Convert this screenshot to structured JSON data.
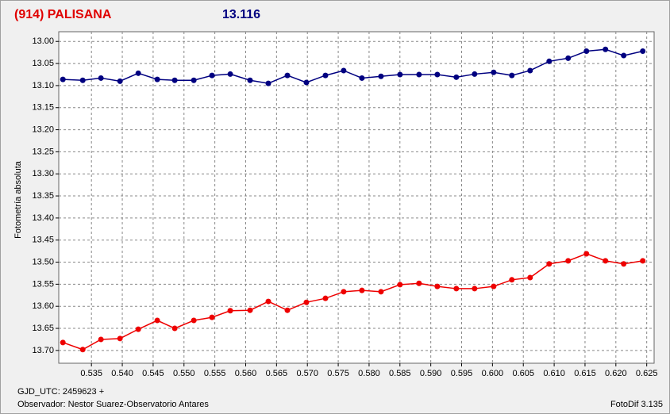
{
  "chart_data": {
    "type": "line",
    "title": "(914) PALISANA",
    "subtitle": "13.116",
    "ylabel": "Fotometría absoluta",
    "xlabel": "GJD_UTC: 2459623 +",
    "observer": "Observador: Nestor Suarez-Observatorio Antares",
    "software": "FotoDif 3.135",
    "grid": true,
    "xlim": [
      0.5297,
      0.6262
    ],
    "ylim": [
      13.729,
      12.978
    ],
    "xticks": [
      0.535,
      {
        "value": 0.54,
        "label": "0.540"
      },
      0.545,
      {
        "value": 0.55,
        "label": "0.550"
      },
      0.555,
      {
        "value": 0.56,
        "label": "0.560"
      },
      0.565,
      {
        "value": 0.57,
        "label": "0.570"
      },
      0.575,
      {
        "value": 0.58,
        "label": "0.580"
      },
      0.585,
      {
        "value": 0.59,
        "label": "0.590"
      },
      0.595,
      {
        "value": 0.6,
        "label": "0.600"
      },
      0.605,
      {
        "value": 0.61,
        "label": "0.610"
      },
      0.615,
      {
        "value": 0.62,
        "label": "0.620"
      },
      0.625
    ],
    "yticks": [
      {
        "value": 13,
        "label": "13.00"
      },
      13.05,
      {
        "value": 13.1,
        "label": "13.10"
      },
      13.15,
      {
        "value": 13.2,
        "label": "13.20"
      },
      13.25,
      {
        "value": 13.3,
        "label": "13.30"
      },
      13.35,
      {
        "value": 13.4,
        "label": "13.40"
      },
      13.45,
      {
        "value": 13.5,
        "label": "13.50"
      },
      13.55,
      {
        "value": 13.6,
        "label": "13.60"
      },
      13.65,
      {
        "value": 13.7,
        "label": "13.70"
      }
    ],
    "x": [
      0.53037,
      0.53359,
      0.53654,
      0.53963,
      0.54259,
      0.54567,
      0.5485,
      0.55159,
      0.55454,
      0.5575,
      0.56071,
      0.56367,
      0.56676,
      0.56984,
      0.57293,
      0.57588,
      0.57884,
      0.58193,
      0.58501,
      0.5881,
      0.59106,
      0.59414,
      0.5971,
      0.60019,
      0.60314,
      0.6061,
      0.60919,
      0.61227,
      0.61523,
      0.61831,
      0.62127,
      0.62436
    ],
    "series": [
      {
        "color": "#000080",
        "values": [
          13.086,
          13.088,
          13.083,
          13.09,
          13.072,
          13.086,
          13.088,
          13.088,
          13.077,
          13.074,
          13.088,
          13.095,
          13.077,
          13.093,
          13.077,
          13.066,
          13.083,
          13.079,
          13.075,
          13.075,
          13.075,
          13.081,
          13.074,
          13.07,
          13.077,
          13.066,
          13.045,
          13.038,
          13.022,
          13.018,
          13.032,
          13.022
        ]
      },
      {
        "color": "#ee0000",
        "values": [
          13.682,
          13.698,
          13.675,
          13.673,
          13.652,
          13.632,
          13.65,
          13.632,
          13.625,
          13.61,
          13.609,
          13.589,
          13.609,
          13.591,
          13.582,
          13.567,
          13.564,
          13.567,
          13.551,
          13.548,
          13.555,
          13.56,
          13.56,
          13.555,
          13.54,
          13.535,
          13.504,
          13.497,
          13.481,
          13.497,
          13.504,
          13.497
        ]
      }
    ]
  }
}
